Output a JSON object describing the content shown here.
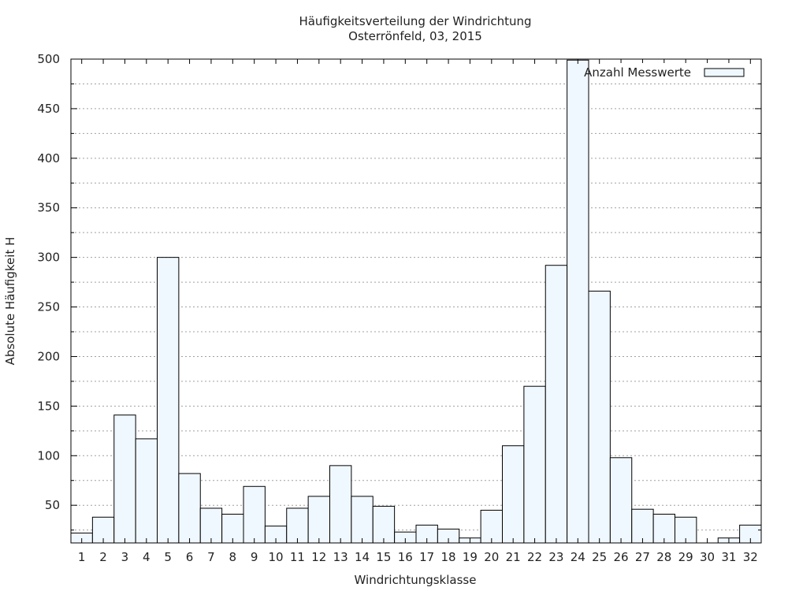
{
  "chart_data": {
    "type": "bar",
    "title": "Häufigkeitsverteilung der Windrichtung",
    "subtitle": "Osterrönfeld, 03, 2015",
    "xlabel": "Windrichtungsklasse",
    "ylabel": "Absolute Häufigkeit H",
    "ylim": [
      12,
      500
    ],
    "y_ticks": [
      50,
      100,
      150,
      200,
      250,
      300,
      350,
      400,
      450,
      500
    ],
    "y_minor_step": 25,
    "grid": true,
    "legend_position": "top-right",
    "categories": [
      "1",
      "2",
      "3",
      "4",
      "5",
      "6",
      "7",
      "8",
      "9",
      "10",
      "11",
      "12",
      "13",
      "14",
      "15",
      "16",
      "17",
      "18",
      "19",
      "20",
      "21",
      "22",
      "23",
      "24",
      "25",
      "26",
      "27",
      "28",
      "29",
      "30",
      "31",
      "32"
    ],
    "series": [
      {
        "name": "Anzahl Messwerte",
        "values": [
          22,
          38,
          141,
          117,
          300,
          82,
          47,
          41,
          69,
          29,
          47,
          59,
          90,
          59,
          49,
          23,
          30,
          26,
          17,
          45,
          110,
          170,
          292,
          499,
          266,
          98,
          46,
          41,
          38,
          10,
          17,
          30
        ]
      }
    ],
    "colors": {
      "bar_fill": "#f0f8ff",
      "bar_stroke": "#000000",
      "grid": "#a0a0a0"
    }
  }
}
